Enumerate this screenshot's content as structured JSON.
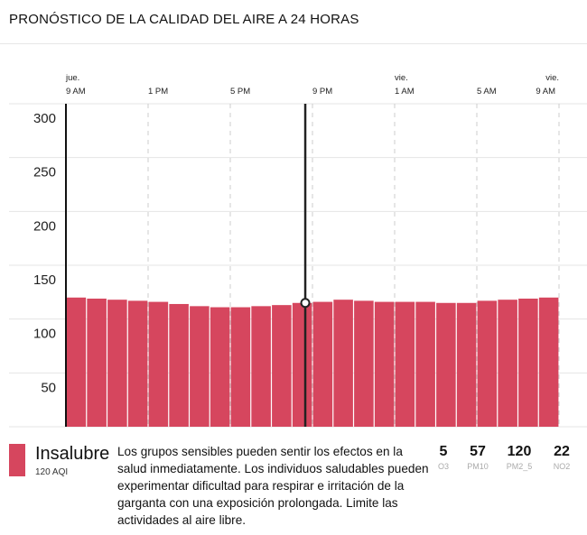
{
  "title": "PRONÓSTICO DE LA CALIDAD DEL AIRE A 24 HORAS",
  "chart_data": {
    "type": "bar",
    "x_hours": [
      0,
      1,
      2,
      3,
      4,
      5,
      6,
      7,
      8,
      9,
      10,
      11,
      12,
      13,
      14,
      15,
      16,
      17,
      18,
      19,
      20,
      21,
      22,
      23
    ],
    "values": [
      120,
      119,
      118,
      117,
      116,
      114,
      112,
      111,
      111,
      112,
      113,
      115,
      116,
      118,
      117,
      116,
      116,
      116,
      115,
      115,
      117,
      118,
      119,
      120
    ],
    "ylim": [
      0,
      300
    ],
    "yticks": [
      50,
      100,
      150,
      200,
      250,
      300
    ],
    "xticks": [
      {
        "hour": 0,
        "day": "jue.",
        "label": "9 AM"
      },
      {
        "hour": 4,
        "day": "",
        "label": "1 PM"
      },
      {
        "hour": 8,
        "day": "",
        "label": "5 PM"
      },
      {
        "hour": 12,
        "day": "",
        "label": "9 PM"
      },
      {
        "hour": 16,
        "day": "vie.",
        "label": "1 AM"
      },
      {
        "hour": 20,
        "day": "",
        "label": "5 AM"
      },
      {
        "hour": 24,
        "day": "vie.",
        "label": "9 AM"
      }
    ],
    "cursor_hour": 11.65,
    "cursor_value": 115,
    "bar_color": "#d6465e",
    "grid": true
  },
  "summary": {
    "category": "Insalubre",
    "aqi": "120 AQI",
    "color": "#d6465e",
    "description": "Los grupos sensibles pueden sentir los efectos en la salud inmediatamente. Los individuos saludables pueden experimentar dificultad para respirar e irritación de la garganta con una exposición prolongada. Limite las actividades al aire libre."
  },
  "pollutants": [
    {
      "value": "5",
      "name": "O3"
    },
    {
      "value": "57",
      "name": "PM10"
    },
    {
      "value": "120",
      "name": "PM2_5"
    },
    {
      "value": "22",
      "name": "NO2"
    }
  ]
}
